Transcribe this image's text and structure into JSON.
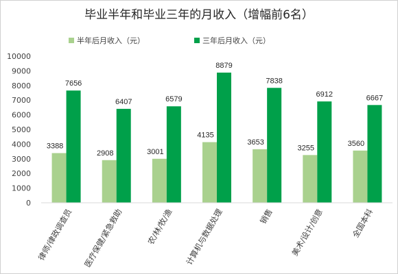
{
  "chart_data": {
    "type": "bar",
    "title": "毕业半年和毕业三年的月收入（增幅前6名）",
    "categories": [
      "律师/律政调查员",
      "医疗保健/紧急救助",
      "农/林/牧/渔",
      "计算机与数据处理",
      "销售",
      "美术/设计/创意",
      "全国本科"
    ],
    "series": [
      {
        "name": "半年后月收入（元）",
        "values": [
          3388,
          2908,
          3001,
          4135,
          3653,
          3255,
          3560
        ],
        "color": "#a9d18e"
      },
      {
        "name": "三年后月收入（元）",
        "values": [
          7656,
          6407,
          6579,
          8879,
          7838,
          6912,
          6667
        ],
        "color": "#00a04a"
      }
    ],
    "ylim": [
      0,
      10000
    ],
    "yticks": [
      0,
      1000,
      2000,
      3000,
      4000,
      5000,
      6000,
      7000,
      8000,
      9000,
      10000
    ],
    "xlabel": "",
    "ylabel": "",
    "grid": false,
    "legend_position": "top-center",
    "data_labels": true
  }
}
